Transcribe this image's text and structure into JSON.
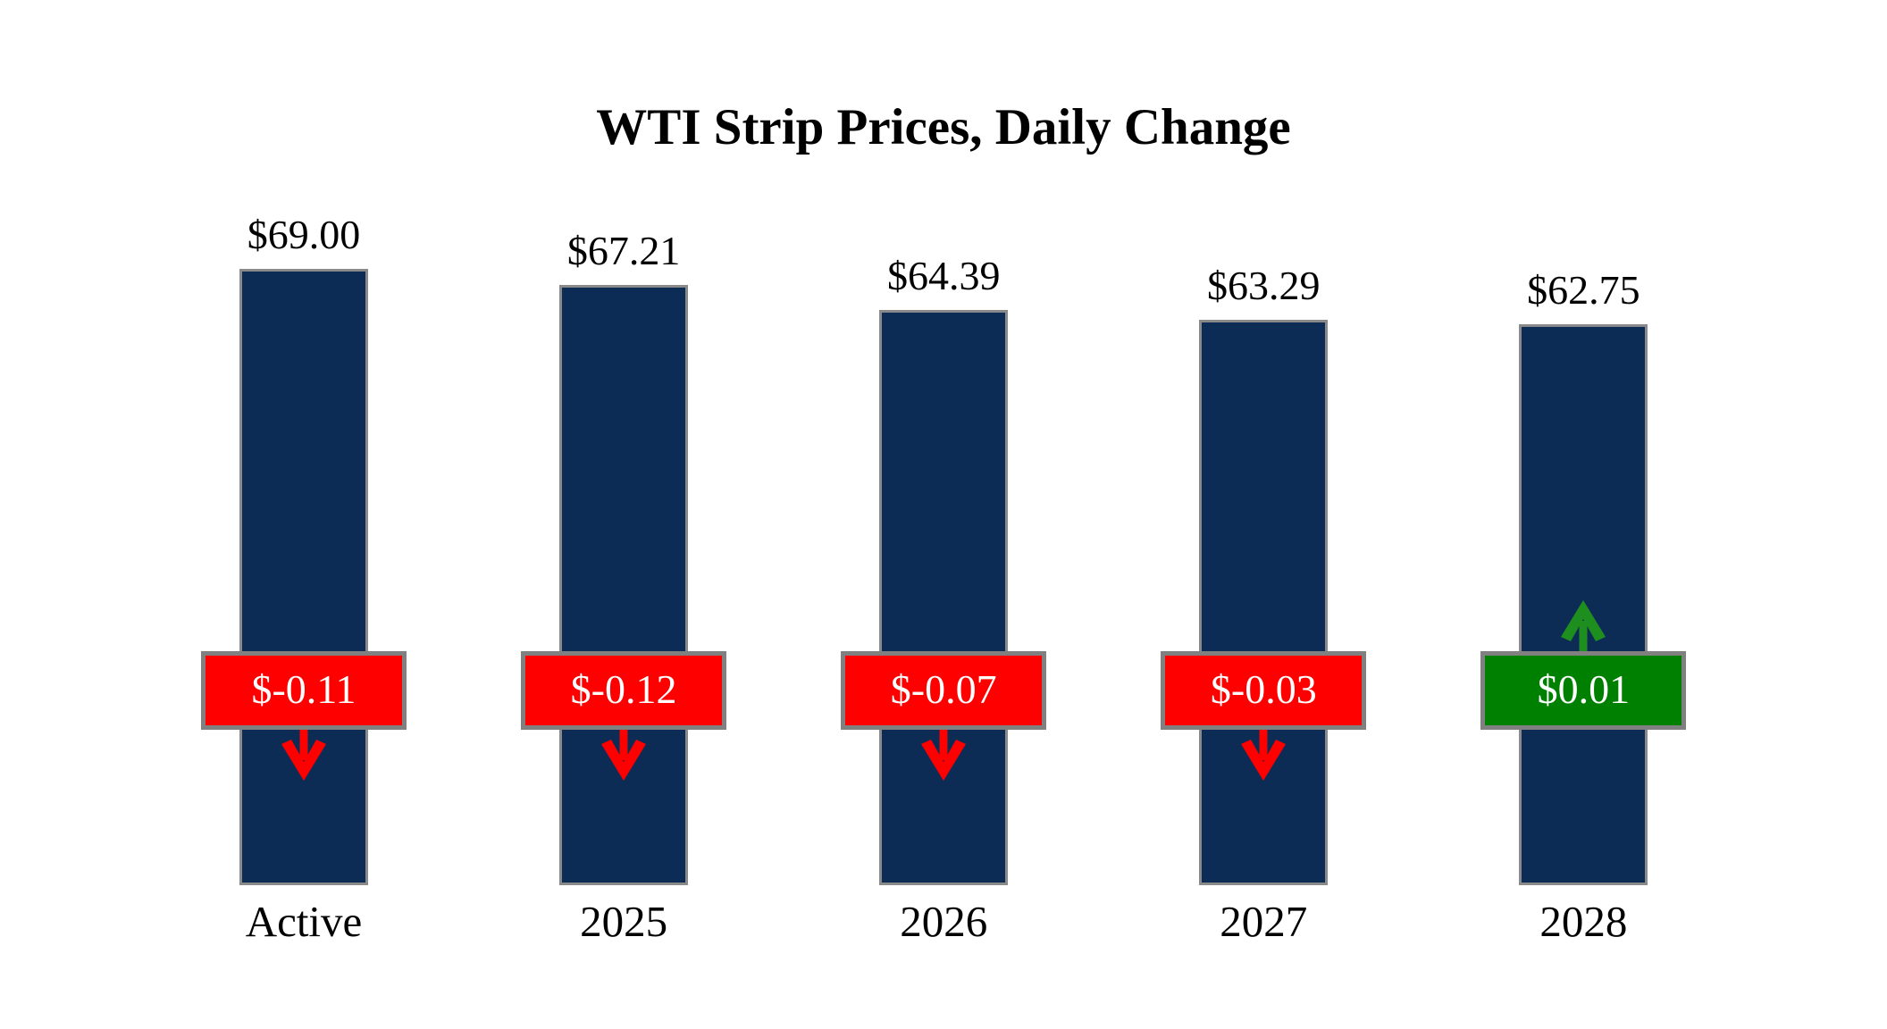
{
  "title": "WTI Strip Prices, Daily Change",
  "chart_data": {
    "type": "bar",
    "title": "WTI Strip Prices, Daily Change",
    "categories": [
      "Active",
      "2025",
      "2026",
      "2027",
      "2028"
    ],
    "values": [
      69.0,
      67.21,
      64.39,
      63.29,
      62.75
    ],
    "xlabel": "",
    "ylabel": "",
    "ylim": [
      0,
      69
    ],
    "axes_visible": false,
    "grid": false,
    "legend": false,
    "columns": [
      {
        "category": "Active",
        "value": 69.0,
        "price_label": "$69.00",
        "change_value": -0.11,
        "change_label": "$-0.11",
        "direction": "down"
      },
      {
        "category": "2025",
        "value": 67.21,
        "price_label": "$67.21",
        "change_value": -0.12,
        "change_label": "$-0.12",
        "direction": "down"
      },
      {
        "category": "2026",
        "value": 64.39,
        "price_label": "$64.39",
        "change_value": -0.07,
        "change_label": "$-0.07",
        "direction": "down"
      },
      {
        "category": "2027",
        "value": 63.29,
        "price_label": "$63.29",
        "change_value": -0.03,
        "change_label": "$-0.03",
        "direction": "down"
      },
      {
        "category": "2028",
        "value": 62.75,
        "price_label": "$62.75",
        "change_value": 0.01,
        "change_label": "$0.01",
        "direction": "up"
      }
    ],
    "colors": {
      "bar": "#0d2c55",
      "bar_border": "#8a8a8a",
      "negative": "#fe0000",
      "negative_arrow": "#fe0000",
      "positive": "#008000",
      "positive_arrow": "#1e8f1e",
      "badge_border": "#808080",
      "badge_text": "#ffffff",
      "label_text": "#000000",
      "background": "#ffffff"
    }
  }
}
